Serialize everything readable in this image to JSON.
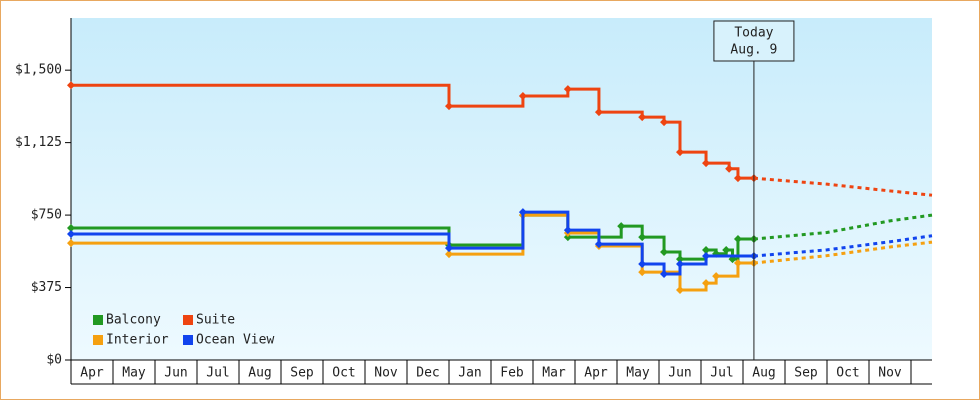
{
  "chart_data": {
    "type": "step-line",
    "ylim": [
      0,
      1770
    ],
    "yticks": [
      {
        "value": 0,
        "label": "$0"
      },
      {
        "value": 375,
        "label": "$375"
      },
      {
        "value": 750,
        "label": "$750"
      },
      {
        "value": 1125,
        "label": "$1,125"
      },
      {
        "value": 1500,
        "label": "$1,500"
      }
    ],
    "xlim": [
      0,
      20.5
    ],
    "xticks": [
      {
        "value": 0.5,
        "label": "Apr"
      },
      {
        "value": 1.5,
        "label": "May"
      },
      {
        "value": 2.5,
        "label": "Jun"
      },
      {
        "value": 3.5,
        "label": "Jul"
      },
      {
        "value": 4.5,
        "label": "Aug"
      },
      {
        "value": 5.5,
        "label": "Sep"
      },
      {
        "value": 6.5,
        "label": "Oct"
      },
      {
        "value": 7.5,
        "label": "Nov"
      },
      {
        "value": 8.5,
        "label": "Dec"
      },
      {
        "value": 9.5,
        "label": "Jan"
      },
      {
        "value": 10.5,
        "label": "Feb"
      },
      {
        "value": 11.5,
        "label": "Mar"
      },
      {
        "value": 12.5,
        "label": "Apr"
      },
      {
        "value": 13.5,
        "label": "May"
      },
      {
        "value": 14.5,
        "label": "Jun"
      },
      {
        "value": 15.5,
        "label": "Jul"
      },
      {
        "value": 16.5,
        "label": "Aug"
      },
      {
        "value": 17.5,
        "label": "Sep"
      },
      {
        "value": 18.5,
        "label": "Oct"
      },
      {
        "value": 19.5,
        "label": "Nov"
      }
    ],
    "today": {
      "x": 16.26,
      "label": "Today",
      "date": "Aug. 9"
    },
    "legend": "lower-left",
    "series": [
      {
        "name": "Balcony",
        "color": "#229922",
        "x": [
          0,
          9.0,
          10.76,
          11.83,
          13.1,
          13.6,
          14.12,
          14.5,
          15.12,
          15.36,
          15.6,
          15.75,
          15.88,
          16.26
        ],
        "values": [
          683,
          595,
          750,
          636,
          693,
          636,
          559,
          522,
          569,
          550,
          569,
          522,
          626,
          626
        ],
        "forecast_x": [
          16.26,
          18.0,
          19.5,
          20.5
        ],
        "forecast_values": [
          626,
          660,
          720,
          750
        ]
      },
      {
        "name": "Suite",
        "color": "#ee4411",
        "x": [
          0,
          9.0,
          10.76,
          11.83,
          12.57,
          13.6,
          14.12,
          14.5,
          15.12,
          15.67,
          15.88,
          16.26
        ],
        "values": [
          1422,
          1314,
          1366,
          1402,
          1283,
          1257,
          1231,
          1076,
          1019,
          990,
          941,
          941
        ],
        "forecast_x": [
          16.26,
          18.0,
          19.5,
          20.5
        ],
        "forecast_values": [
          941,
          910,
          875,
          853
        ]
      },
      {
        "name": "Interior",
        "color": "#f5a010",
        "x": [
          0,
          9.0,
          10.76,
          11.83,
          12.57,
          13.6,
          14.5,
          15.12,
          15.36,
          15.88,
          16.26
        ],
        "values": [
          605,
          548,
          750,
          657,
          590,
          455,
          362,
          398,
          434,
          502,
          502
        ],
        "forecast_x": [
          16.26,
          18.0,
          19.5,
          20.5
        ],
        "forecast_values": [
          502,
          540,
          585,
          610
        ]
      },
      {
        "name": "Ocean View",
        "color": "#1144ee",
        "x": [
          0,
          9.0,
          10.76,
          11.83,
          12.57,
          13.6,
          14.12,
          14.5,
          15.12,
          16.26
        ],
        "values": [
          652,
          579,
          765,
          672,
          600,
          497,
          445,
          497,
          538,
          538
        ],
        "forecast_x": [
          16.26,
          18.0,
          19.5,
          20.5
        ],
        "forecast_values": [
          538,
          570,
          612,
          643
        ]
      }
    ]
  }
}
